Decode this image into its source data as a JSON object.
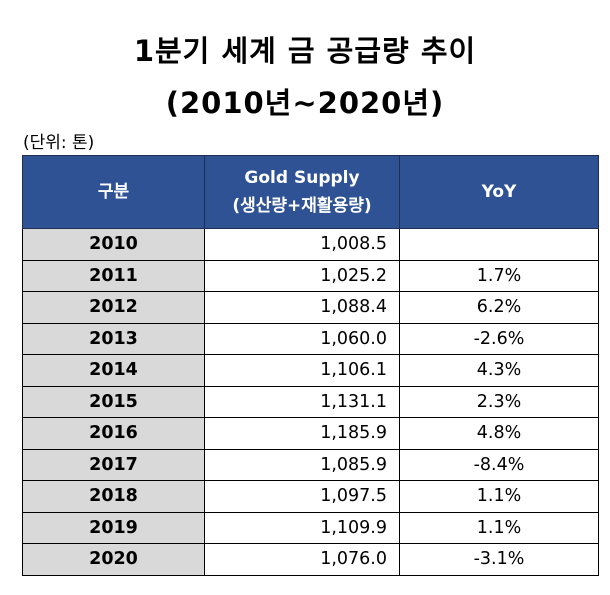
{
  "title_line1": "1분기 세계 금 공급량 추이",
  "title_line2": "(2010년~2020년)",
  "unit": "(단위: 톤)",
  "headers": {
    "col1": "구분",
    "col2_line1": "Gold Supply",
    "col2_line2": "(생산량+재활용량)",
    "col3": "YoY"
  },
  "rows": [
    {
      "year": "2010",
      "supply": "1,008.5",
      "yoy": ""
    },
    {
      "year": "2011",
      "supply": "1,025.2",
      "yoy": "1.7%"
    },
    {
      "year": "2012",
      "supply": "1,088.4",
      "yoy": "6.2%"
    },
    {
      "year": "2013",
      "supply": "1,060.0",
      "yoy": "-2.6%"
    },
    {
      "year": "2014",
      "supply": "1,106.1",
      "yoy": "4.3%"
    },
    {
      "year": "2015",
      "supply": "1,131.1",
      "yoy": "2.3%"
    },
    {
      "year": "2016",
      "supply": "1,185.9",
      "yoy": "4.8%"
    },
    {
      "year": "2017",
      "supply": "1,085.9",
      "yoy": "-8.4%"
    },
    {
      "year": "2018",
      "supply": "1,097.5",
      "yoy": "1.1%"
    },
    {
      "year": "2019",
      "supply": "1,109.9",
      "yoy": "1.1%"
    },
    {
      "year": "2020",
      "supply": "1,076.0",
      "yoy": "-3.1%"
    }
  ]
}
